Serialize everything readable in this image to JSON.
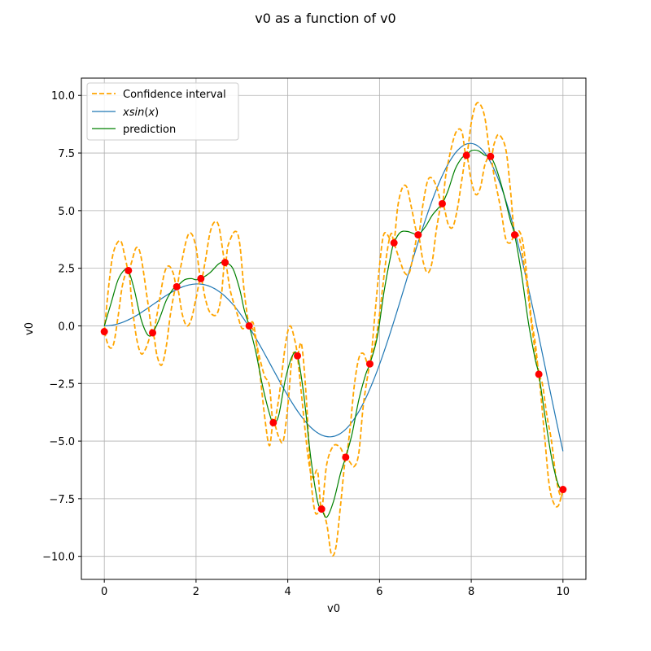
{
  "chart_data": {
    "type": "line",
    "title": "v0 as a function of v0",
    "xlabel": "v0",
    "ylabel": "v0",
    "xlim": [
      -0.5,
      10.5
    ],
    "ylim": [
      -11,
      10.75
    ],
    "xticks": [
      0,
      2,
      4,
      6,
      8,
      10
    ],
    "yticks": [
      -10.0,
      -7.5,
      -5.0,
      -2.5,
      0.0,
      2.5,
      5.0,
      7.5,
      10.0
    ],
    "xtick_labels": [
      "0",
      "2",
      "4",
      "6",
      "8",
      "10"
    ],
    "ytick_labels": [
      "−10.0",
      "−7.5",
      "−5.0",
      "−2.5",
      "0.0",
      "2.5",
      "5.0",
      "7.5",
      "10.0"
    ],
    "grid": true,
    "legend_position": "top-left",
    "colors": {
      "confidence": "#ffa500",
      "xsinx": "#1f77b4",
      "prediction": "#008000",
      "points": "#ff0000"
    },
    "legend": {
      "confidence": "Confidence interval",
      "xsinx_prefix": "xsin",
      "xsinx_open": "(",
      "xsinx_var": "x",
      "xsinx_close": ")",
      "prediction": "prediction"
    },
    "observations": {
      "x": [
        0.0,
        0.526,
        1.053,
        1.579,
        2.105,
        2.632,
        3.158,
        3.684,
        4.211,
        4.737,
        5.263,
        5.789,
        6.316,
        6.842,
        7.368,
        7.895,
        8.421,
        8.947,
        9.474,
        10.0
      ],
      "y": [
        -0.25,
        2.4,
        -0.3,
        1.7,
        2.05,
        2.75,
        0.0,
        -4.2,
        -1.3,
        -7.95,
        -5.7,
        -1.65,
        3.6,
        3.95,
        5.3,
        7.4,
        7.35,
        3.95,
        -2.1,
        -7.1
      ]
    },
    "prediction": {
      "x": [
        0.0,
        0.15,
        0.3,
        0.45,
        0.526,
        0.65,
        0.8,
        0.95,
        1.053,
        1.2,
        1.35,
        1.5,
        1.579,
        1.75,
        1.9,
        2.0,
        2.105,
        2.3,
        2.5,
        2.632,
        2.8,
        2.95,
        3.05,
        3.158,
        3.3,
        3.45,
        3.6,
        3.684,
        3.8,
        3.95,
        4.1,
        4.211,
        4.35,
        4.5,
        4.65,
        4.737,
        4.85,
        5.0,
        5.15,
        5.263,
        5.4,
        5.55,
        5.7,
        5.789,
        5.95,
        6.1,
        6.25,
        6.316,
        6.45,
        6.6,
        6.75,
        6.842,
        7.0,
        7.15,
        7.3,
        7.368,
        7.5,
        7.65,
        7.8,
        7.895,
        8.0,
        8.15,
        8.3,
        8.421,
        8.55,
        8.7,
        8.85,
        8.947,
        9.1,
        9.25,
        9.4,
        9.474,
        9.6,
        9.75,
        9.9,
        10.0
      ],
      "y": [
        0.0,
        1.0,
        2.0,
        2.45,
        2.4,
        1.6,
        0.3,
        -0.4,
        -0.3,
        0.3,
        1.1,
        1.6,
        1.7,
        2.0,
        2.05,
        2.0,
        2.05,
        2.3,
        2.7,
        2.75,
        2.5,
        1.6,
        0.7,
        0.0,
        -1.1,
        -2.6,
        -3.8,
        -4.2,
        -3.9,
        -2.3,
        -1.3,
        -1.3,
        -3.0,
        -5.7,
        -7.6,
        -7.95,
        -8.3,
        -7.6,
        -6.4,
        -5.7,
        -4.7,
        -3.2,
        -2.1,
        -1.65,
        -0.5,
        1.5,
        3.1,
        3.6,
        4.05,
        4.1,
        4.0,
        3.95,
        4.3,
        4.8,
        5.15,
        5.3,
        5.9,
        6.8,
        7.3,
        7.4,
        7.6,
        7.6,
        7.4,
        7.35,
        6.8,
        5.8,
        4.6,
        3.95,
        2.2,
        0.1,
        -1.5,
        -2.1,
        -3.8,
        -5.7,
        -6.9,
        -7.1
      ]
    },
    "confidence_upper": {
      "x": [
        0.0,
        0.1,
        0.2,
        0.35,
        0.45,
        0.526,
        0.6,
        0.7,
        0.8,
        0.95,
        1.053,
        1.15,
        1.3,
        1.4,
        1.5,
        1.579,
        1.65,
        1.8,
        1.9,
        2.0,
        2.105,
        2.2,
        2.3,
        2.4,
        2.5,
        2.632,
        2.7,
        2.85,
        2.95,
        3.05,
        3.158,
        3.25,
        3.4,
        3.5,
        3.6,
        3.684,
        3.8,
        3.95,
        4.05,
        4.15,
        4.211,
        4.3,
        4.45,
        4.55,
        4.65,
        4.737,
        4.85,
        5.0,
        5.15,
        5.263,
        5.35,
        5.45,
        5.55,
        5.65,
        5.789,
        5.9,
        6.0,
        6.1,
        6.25,
        6.316,
        6.4,
        6.5,
        6.6,
        6.7,
        6.842,
        6.95,
        7.05,
        7.15,
        7.25,
        7.368,
        7.45,
        7.6,
        7.7,
        7.8,
        7.895,
        8.0,
        8.1,
        8.2,
        8.3,
        8.421,
        8.5,
        8.6,
        8.75,
        8.85,
        8.947,
        9.05,
        9.15,
        9.3,
        9.4,
        9.474,
        9.55,
        9.65,
        9.75,
        9.85,
        9.95,
        10.0
      ],
      "y": [
        -0.25,
        1.8,
        3.2,
        3.7,
        3.0,
        2.4,
        2.8,
        3.4,
        3.0,
        1.0,
        -0.3,
        0.5,
        2.2,
        2.6,
        2.3,
        1.7,
        2.4,
        3.8,
        4.0,
        3.4,
        2.05,
        2.8,
        4.0,
        4.5,
        4.3,
        2.75,
        3.5,
        4.1,
        3.6,
        1.5,
        0.0,
        -0.2,
        -1.5,
        -2.2,
        -2.6,
        -4.2,
        -3.2,
        -0.8,
        0.0,
        -0.6,
        -1.3,
        -3.0,
        -5.8,
        -6.6,
        -6.3,
        -7.95,
        -6.0,
        -5.2,
        -5.3,
        -5.7,
        -4.6,
        -2.6,
        -1.4,
        -1.2,
        -1.65,
        0.5,
        2.6,
        4.0,
        3.7,
        3.6,
        5.2,
        6.0,
        6.0,
        5.1,
        3.95,
        5.3,
        6.3,
        6.4,
        6.0,
        5.3,
        6.6,
        8.0,
        8.5,
        8.4,
        7.4,
        8.8,
        9.6,
        9.6,
        9.0,
        7.35,
        7.9,
        8.3,
        7.7,
        6.0,
        3.95,
        4.1,
        3.3,
        0.5,
        -0.8,
        -2.1,
        -2.5,
        -3.9,
        -5.0,
        -6.6,
        -7.4,
        -7.1
      ]
    },
    "confidence_lower": {
      "x": [
        0.0,
        0.1,
        0.2,
        0.3,
        0.4,
        0.526,
        0.6,
        0.7,
        0.8,
        0.9,
        1.053,
        1.15,
        1.25,
        1.35,
        1.45,
        1.579,
        1.7,
        1.8,
        1.9,
        2.0,
        2.105,
        2.2,
        2.3,
        2.45,
        2.55,
        2.632,
        2.75,
        2.9,
        3.0,
        3.1,
        3.158,
        3.25,
        3.35,
        3.5,
        3.6,
        3.684,
        3.8,
        3.9,
        4.0,
        4.1,
        4.211,
        4.3,
        4.4,
        4.5,
        4.6,
        4.737,
        4.85,
        4.95,
        5.05,
        5.15,
        5.263,
        5.35,
        5.45,
        5.55,
        5.65,
        5.789,
        5.9,
        6.0,
        6.15,
        6.25,
        6.316,
        6.45,
        6.55,
        6.65,
        6.75,
        6.842,
        6.95,
        7.05,
        7.15,
        7.25,
        7.368,
        7.5,
        7.6,
        7.7,
        7.8,
        7.895,
        8.0,
        8.1,
        8.2,
        8.3,
        8.421,
        8.5,
        8.65,
        8.75,
        8.85,
        8.947,
        9.05,
        9.2,
        9.3,
        9.4,
        9.474,
        9.6,
        9.7,
        9.8,
        9.9,
        10.0
      ],
      "y": [
        -0.25,
        -0.9,
        -0.8,
        0.4,
        1.8,
        2.4,
        1.0,
        -0.5,
        -1.2,
        -1.0,
        -0.3,
        -1.3,
        -1.7,
        -0.9,
        0.6,
        1.7,
        0.5,
        0.0,
        0.3,
        1.2,
        2.05,
        1.2,
        0.6,
        0.5,
        1.3,
        2.75,
        1.5,
        0.5,
        -0.1,
        0.0,
        0.0,
        0.1,
        -1.3,
        -4.0,
        -5.2,
        -4.2,
        -4.8,
        -5.0,
        -3.5,
        -1.3,
        -1.3,
        -0.8,
        -3.0,
        -6.5,
        -8.1,
        -7.95,
        -8.6,
        -9.9,
        -9.6,
        -7.8,
        -5.7,
        -5.9,
        -6.1,
        -5.5,
        -3.4,
        -1.65,
        -0.8,
        0.5,
        3.0,
        4.0,
        3.6,
        2.8,
        2.3,
        2.3,
        3.2,
        3.95,
        2.8,
        2.3,
        2.8,
        4.3,
        5.3,
        4.4,
        4.3,
        5.1,
        6.4,
        7.4,
        6.3,
        5.7,
        6.0,
        7.0,
        7.35,
        6.5,
        5.0,
        3.8,
        3.6,
        3.95,
        3.8,
        2.0,
        0.3,
        -1.2,
        -2.1,
        -4.8,
        -6.9,
        -7.7,
        -7.8,
        -7.1
      ]
    },
    "xsinx_samples": 201
  }
}
